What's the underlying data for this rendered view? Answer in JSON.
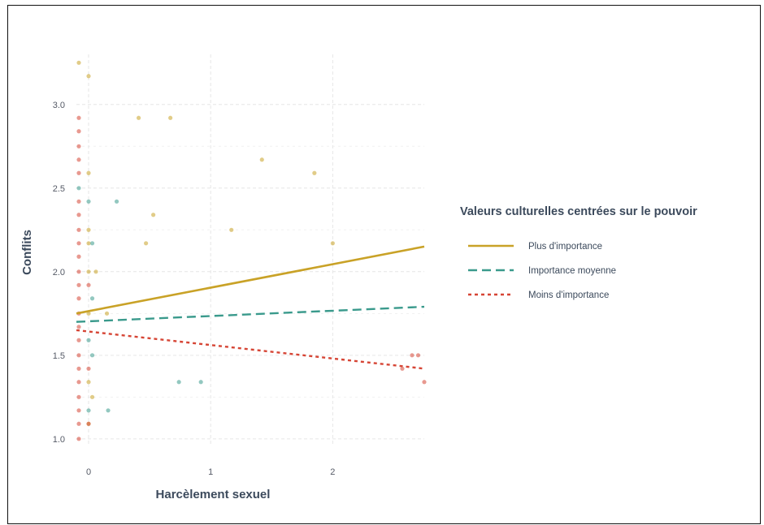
{
  "chart_data": {
    "type": "scatter",
    "xlabel": "Harcèlement sexuel",
    "ylabel": "Conflits",
    "xlim": [
      -0.1,
      2.75
    ],
    "ylim": [
      0.97,
      3.3
    ],
    "x_ticks": [
      0,
      1,
      2
    ],
    "x_tick_labels": [
      "0",
      "1",
      "2"
    ],
    "y_ticks": [
      1.0,
      1.5,
      2.0,
      2.5,
      3.0
    ],
    "y_tick_labels": [
      "1.0",
      "1.5",
      "2.0",
      "2.5",
      "3.0"
    ],
    "grid": true,
    "legend": {
      "title": "Valeurs culturelles centrées sur le pouvoir",
      "position": "right"
    },
    "series": [
      {
        "name": "Plus d'importance",
        "color": "#c9a227",
        "line_style": "solid",
        "fit_line": {
          "x": [
            -0.1,
            2.75
          ],
          "y": [
            1.75,
            2.15
          ]
        },
        "points": [
          {
            "x": 0.0,
            "y": 3.17
          },
          {
            "x": 0.41,
            "y": 2.92
          },
          {
            "x": 0.67,
            "y": 2.92
          },
          {
            "x": 1.42,
            "y": 2.67
          },
          {
            "x": 1.85,
            "y": 2.59
          },
          {
            "x": 0.53,
            "y": 2.34
          },
          {
            "x": 1.17,
            "y": 2.25
          },
          {
            "x": 2.0,
            "y": 2.17
          },
          {
            "x": 0.47,
            "y": 2.17
          },
          {
            "x": 0.0,
            "y": 2.17
          },
          {
            "x": 0.0,
            "y": 2.0
          },
          {
            "x": 0.06,
            "y": 2.0
          },
          {
            "x": 0.15,
            "y": 1.75
          },
          {
            "x": 0.0,
            "y": 1.75
          },
          {
            "x": 0.0,
            "y": 2.59
          },
          {
            "x": 0.0,
            "y": 2.25
          },
          {
            "x": 0.03,
            "y": 1.25
          },
          {
            "x": 0.0,
            "y": 1.34
          },
          {
            "x": -0.08,
            "y": 3.25
          },
          {
            "x": 0.0,
            "y": 1.09
          }
        ]
      },
      {
        "name": "Importance moyenne",
        "color": "#3a9a8c",
        "line_style": "dashed",
        "fit_line": {
          "x": [
            -0.1,
            2.75
          ],
          "y": [
            1.7,
            1.79
          ]
        },
        "points": [
          {
            "x": 0.0,
            "y": 2.42
          },
          {
            "x": 0.23,
            "y": 2.42
          },
          {
            "x": 0.03,
            "y": 2.17
          },
          {
            "x": 0.0,
            "y": 1.59
          },
          {
            "x": 0.03,
            "y": 1.5
          },
          {
            "x": 0.74,
            "y": 1.34
          },
          {
            "x": 0.92,
            "y": 1.34
          },
          {
            "x": 0.16,
            "y": 1.17
          },
          {
            "x": 0.0,
            "y": 1.17
          },
          {
            "x": 0.03,
            "y": 1.84
          },
          {
            "x": -0.08,
            "y": 2.5
          }
        ]
      },
      {
        "name": "Moins d'importance",
        "color": "#d64535",
        "line_style": "dotted",
        "fit_line": {
          "x": [
            -0.1,
            2.75
          ],
          "y": [
            1.65,
            1.42
          ]
        },
        "points": [
          {
            "x": -0.08,
            "y": 2.92
          },
          {
            "x": -0.08,
            "y": 2.84
          },
          {
            "x": -0.08,
            "y": 2.75
          },
          {
            "x": -0.08,
            "y": 2.67
          },
          {
            "x": -0.08,
            "y": 2.59
          },
          {
            "x": -0.08,
            "y": 2.42
          },
          {
            "x": -0.08,
            "y": 2.34
          },
          {
            "x": -0.08,
            "y": 2.25
          },
          {
            "x": -0.08,
            "y": 2.17
          },
          {
            "x": -0.08,
            "y": 2.09
          },
          {
            "x": -0.08,
            "y": 2.0
          },
          {
            "x": -0.08,
            "y": 1.92
          },
          {
            "x": -0.08,
            "y": 1.84
          },
          {
            "x": -0.08,
            "y": 1.75
          },
          {
            "x": -0.08,
            "y": 1.67
          },
          {
            "x": -0.08,
            "y": 1.59
          },
          {
            "x": -0.08,
            "y": 1.5
          },
          {
            "x": -0.08,
            "y": 1.42
          },
          {
            "x": -0.08,
            "y": 1.34
          },
          {
            "x": -0.08,
            "y": 1.25
          },
          {
            "x": -0.08,
            "y": 1.17
          },
          {
            "x": -0.08,
            "y": 1.09
          },
          {
            "x": -0.08,
            "y": 1.0
          },
          {
            "x": 0.0,
            "y": 1.92
          },
          {
            "x": 0.0,
            "y": 1.42
          },
          {
            "x": 0.0,
            "y": 1.09
          },
          {
            "x": 2.65,
            "y": 1.5
          },
          {
            "x": 2.7,
            "y": 1.5
          },
          {
            "x": 2.57,
            "y": 1.42
          },
          {
            "x": 2.75,
            "y": 1.34
          }
        ]
      }
    ]
  }
}
